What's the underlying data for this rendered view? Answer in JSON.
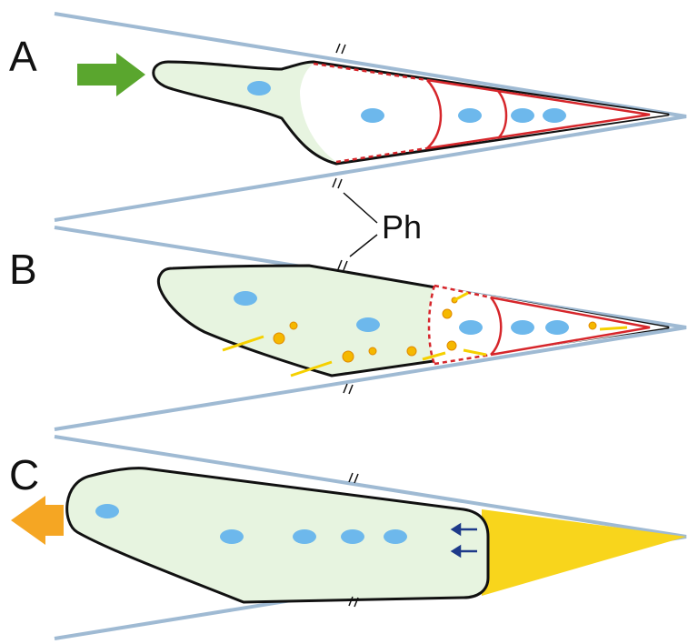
{
  "panels": [
    {
      "label": "A"
    },
    {
      "label": "B"
    },
    {
      "label": "C"
    }
  ],
  "annotation": "Ph"
}
